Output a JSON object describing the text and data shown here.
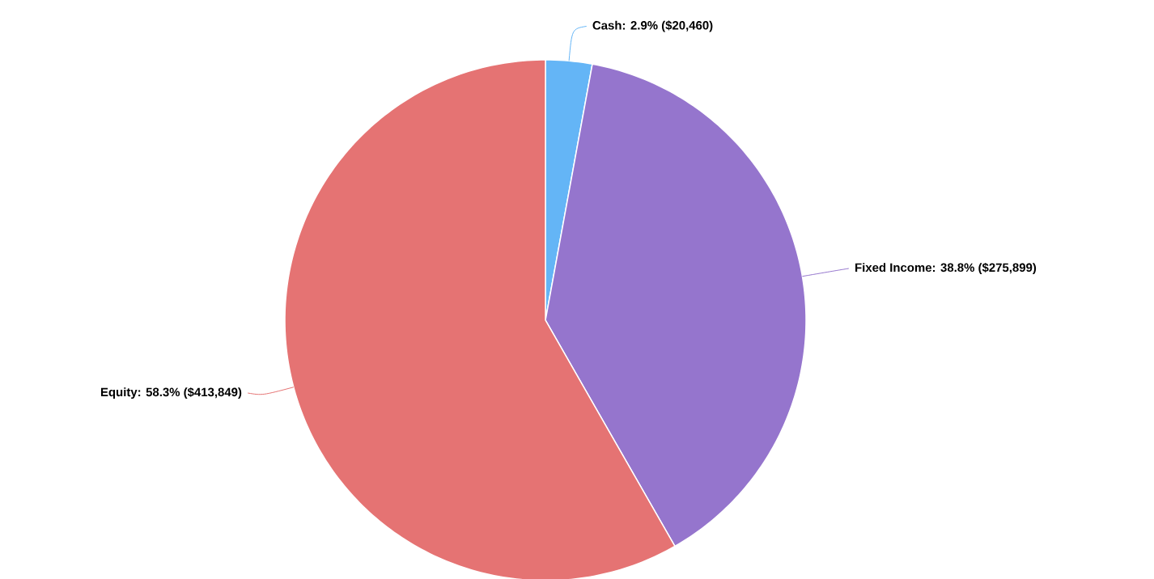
{
  "chart_data": {
    "type": "pie",
    "categories": [
      "Cash",
      "Fixed Income",
      "Equity"
    ],
    "values": [
      20460,
      275899,
      413849
    ],
    "value_labels": [
      ": 2.9% ($20,460)",
      ": 38.8% ($275,899)",
      ": 58.3% ($413,849)"
    ],
    "colors": [
      "#64b5f6",
      "#9575cd",
      "#e57373"
    ]
  }
}
